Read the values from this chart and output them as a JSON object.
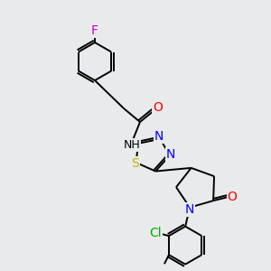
{
  "bg_color": "#e8eaeb",
  "bond_color": "#000000",
  "atoms": {
    "F": {
      "color": "#cc00cc",
      "size": 10
    },
    "O": {
      "color": "#ff0000",
      "size": 10
    },
    "N": {
      "color": "#0000ff",
      "size": 10
    },
    "S": {
      "color": "#bbbb00",
      "size": 10
    },
    "Cl": {
      "color": "#00aa00",
      "size": 10
    },
    "H": {
      "color": "#888888",
      "size": 9
    }
  },
  "figsize": [
    3.0,
    3.0
  ],
  "dpi": 100
}
